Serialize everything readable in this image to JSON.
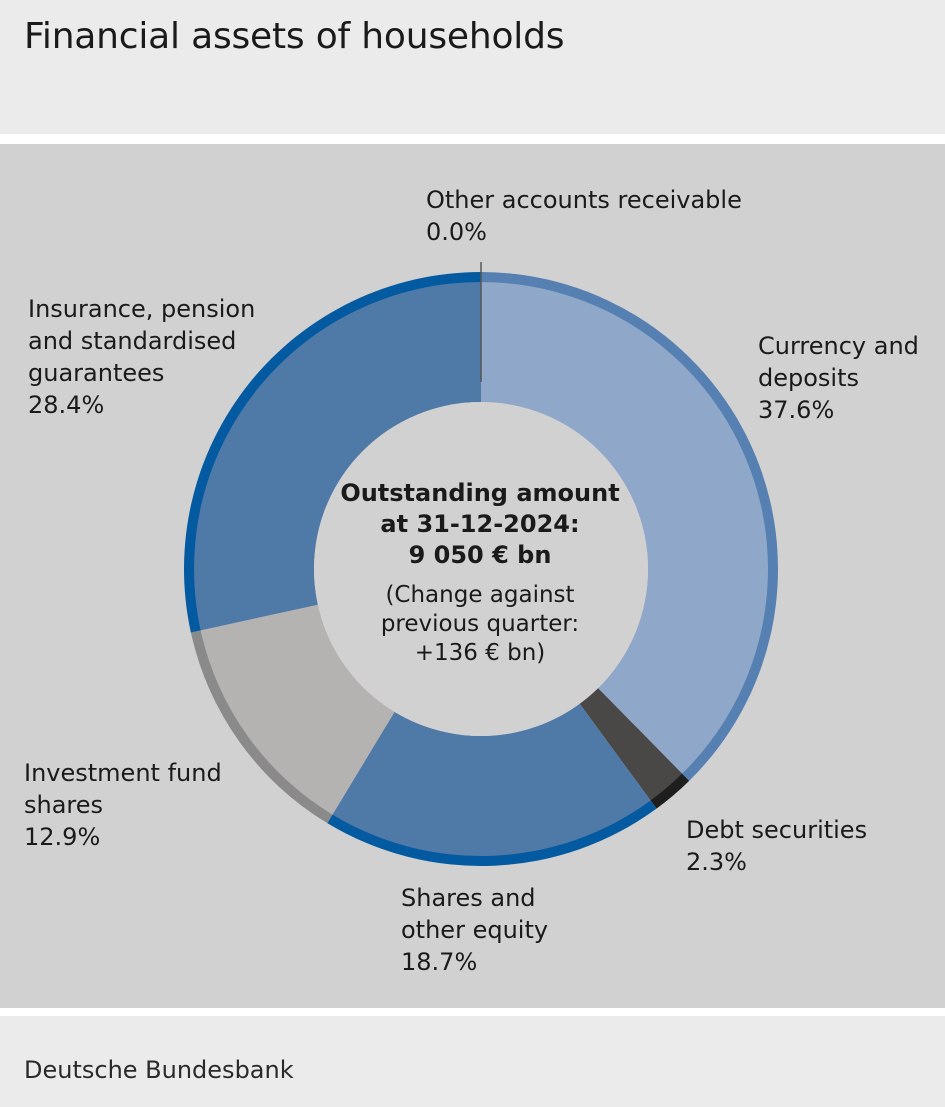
{
  "header": {
    "title": "Financial assets of households"
  },
  "footer": {
    "source": "Deutsche Bundesbank"
  },
  "colors": {
    "currency": "#8fa7c8",
    "currency_outer": "#5580b1",
    "debt": "#4a4846",
    "debt_outer": "#1e1e1e",
    "shares": "#4f7aa8",
    "shares_outer": "#045aa0",
    "funds": "#b4b3b2",
    "funds_outer": "#8a8a8a",
    "insurance": "#4f7aa8",
    "insurance_outer": "#045aa0",
    "center": "#d1d1d1"
  },
  "chart_data": {
    "type": "pie",
    "variant": "donut",
    "slices": [
      {
        "key": "currency",
        "label": "Currency and\ndeposits",
        "value": 37.6,
        "value_label": "37.6%"
      },
      {
        "key": "debt",
        "label": "Debt securities",
        "value": 2.3,
        "value_label": "2.3%"
      },
      {
        "key": "shares",
        "label": "Shares and\nother equity",
        "value": 18.7,
        "value_label": "18.7%"
      },
      {
        "key": "funds",
        "label": "Investment fund\nshares",
        "value": 12.9,
        "value_label": "12.9%"
      },
      {
        "key": "insurance",
        "label": "Insurance, pension\nand standardised\nguarantees",
        "value": 28.4,
        "value_label": "28.4%"
      },
      {
        "key": "other",
        "label": "Other accounts receivable",
        "value": 0.0,
        "value_label": "0.0%"
      }
    ],
    "center": {
      "main": "Outstanding amount\nat 31-12-2024:\n9 050 € bn",
      "sub": "(Change against\nprevious quarter:\n+136 € bn)"
    }
  }
}
